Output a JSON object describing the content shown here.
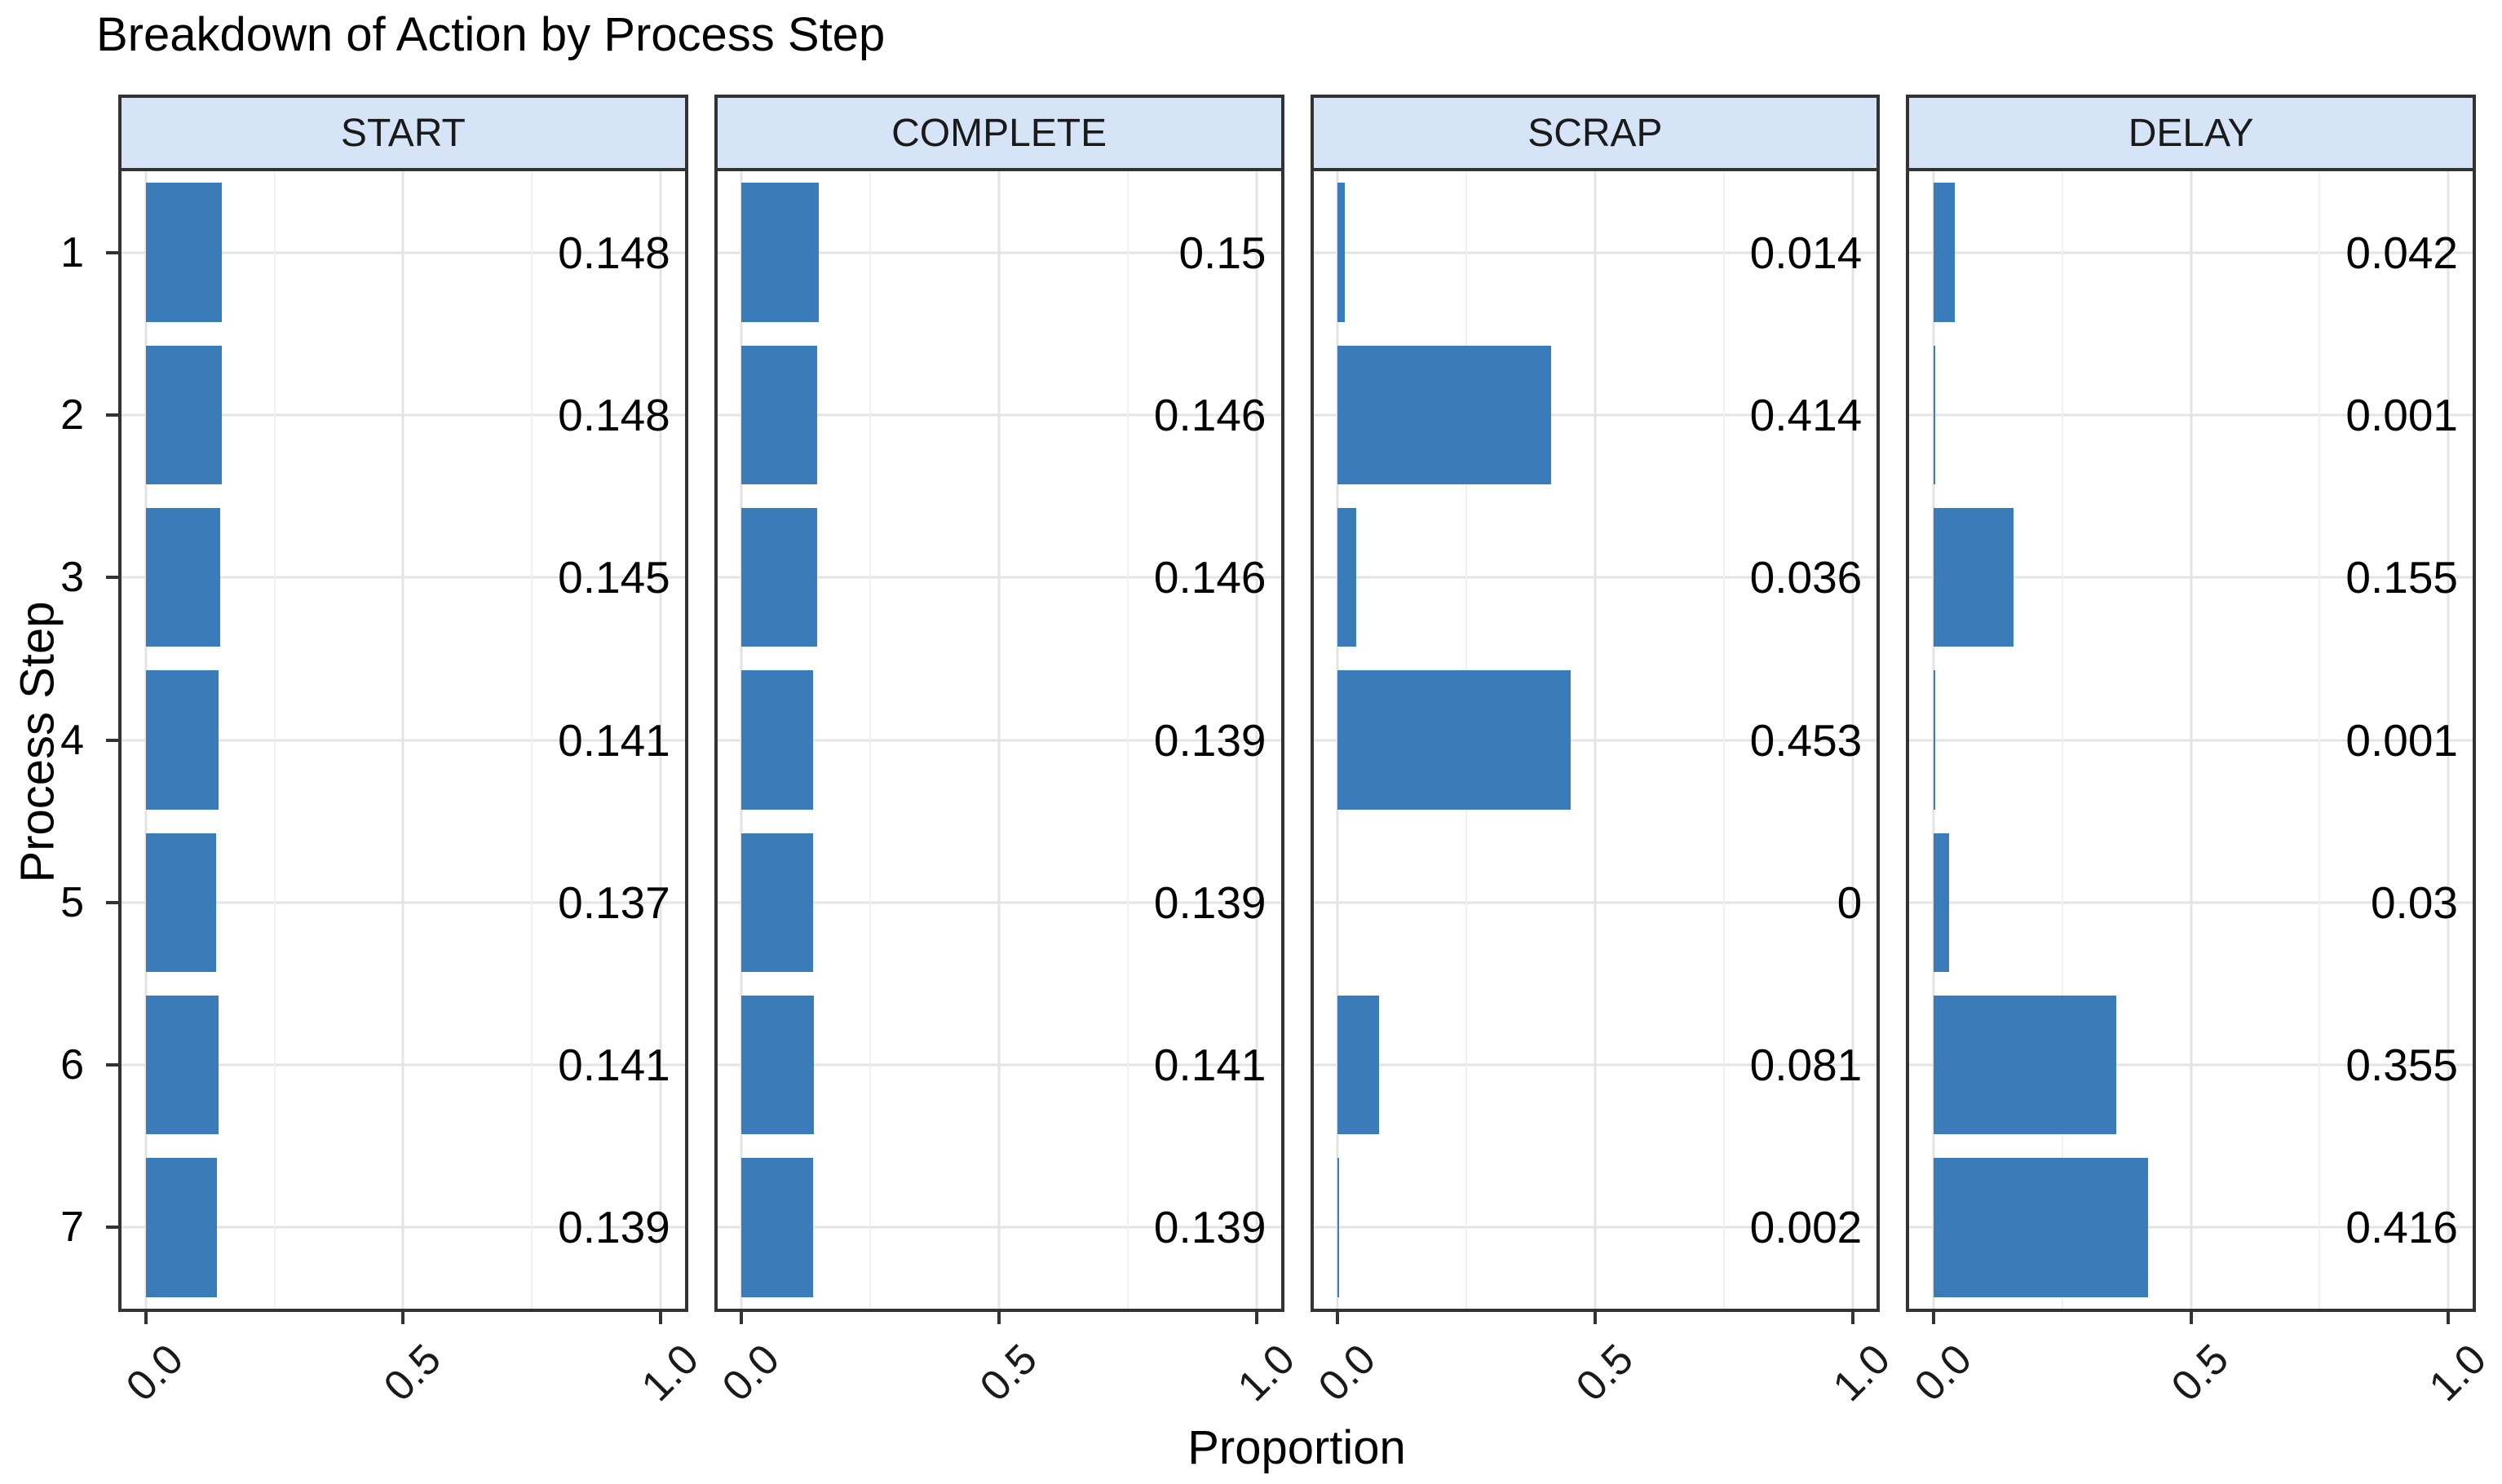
{
  "chart_data": {
    "type": "bar",
    "orientation": "horizontal",
    "title": "Breakdown of Action by Process Step",
    "xlabel": "Proportion",
    "ylabel": "Process Step",
    "categories": [
      "1",
      "2",
      "3",
      "4",
      "5",
      "6",
      "7"
    ],
    "xlim": [
      0,
      1
    ],
    "x_ticks": [
      {
        "value": 0.0,
        "label": "0.0"
      },
      {
        "value": 0.5,
        "label": "0.5"
      },
      {
        "value": 1.0,
        "label": "1.0"
      }
    ],
    "grid": {
      "major_x": [
        0,
        0.5,
        1
      ],
      "minor_x": [
        0.25,
        0.75
      ],
      "major_y": "row-centers"
    },
    "legend_position": "none",
    "facets": [
      {
        "label": "START",
        "values": [
          0.148,
          0.148,
          0.145,
          0.141,
          0.137,
          0.141,
          0.139
        ],
        "value_labels": [
          "0.148",
          "0.148",
          "0.145",
          "0.141",
          "0.137",
          "0.141",
          "0.139"
        ]
      },
      {
        "label": "COMPLETE",
        "values": [
          0.15,
          0.146,
          0.146,
          0.139,
          0.139,
          0.141,
          0.139
        ],
        "value_labels": [
          "0.15",
          "0.146",
          "0.146",
          "0.139",
          "0.139",
          "0.141",
          "0.139"
        ]
      },
      {
        "label": "SCRAP",
        "values": [
          0.014,
          0.414,
          0.036,
          0.453,
          0,
          0.081,
          0.002
        ],
        "value_labels": [
          "0.014",
          "0.414",
          "0.036",
          "0.453",
          "0",
          "0.081",
          "0.002"
        ]
      },
      {
        "label": "DELAY",
        "values": [
          0.042,
          0.001,
          0.155,
          0.001,
          0.03,
          0.355,
          0.416
        ],
        "value_labels": [
          "0.042",
          "0.001",
          "0.155",
          "0.001",
          "0.03",
          "0.355",
          "0.416"
        ]
      }
    ],
    "colors": {
      "bar": "#3a7cba",
      "strip_background": "#d6e4f8",
      "panel_border": "#333333",
      "grid_major": "#e3e3e3",
      "grid_minor": "#f0f0f0",
      "text": "#000000"
    }
  }
}
